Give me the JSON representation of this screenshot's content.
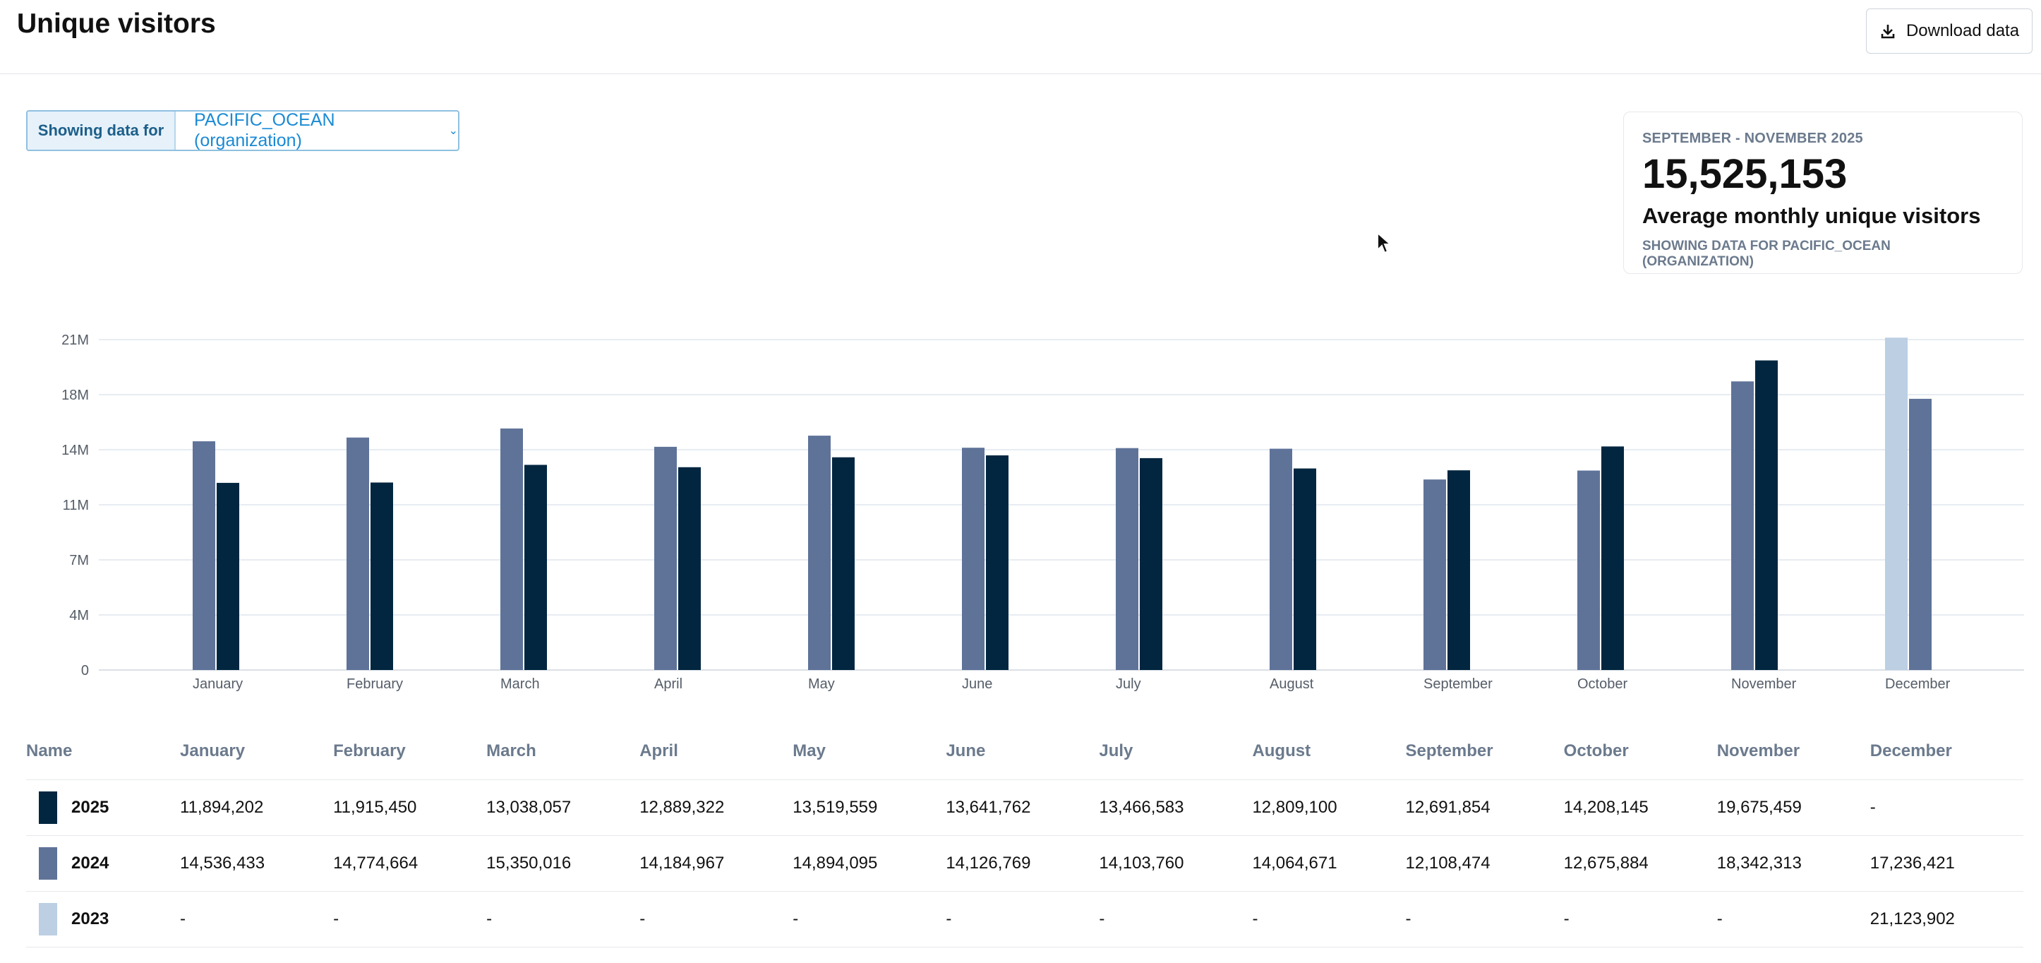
{
  "header": {
    "title": "Unique visitors",
    "download_label": "Download data"
  },
  "filter": {
    "label": "Showing data for",
    "value": "PACIFIC_OCEAN (organization)"
  },
  "summary": {
    "range": "SEPTEMBER - NOVEMBER 2025",
    "value": "15,525,153",
    "caption": "Average monthly unique visitors",
    "footnote": "SHOWING DATA FOR PACIFIC_OCEAN (ORGANIZATION)"
  },
  "colors": {
    "y2025": "#022640",
    "y2024": "#5f7399",
    "y2023": "#bccfe3"
  },
  "chart_data": {
    "type": "bar",
    "categories": [
      "January",
      "February",
      "March",
      "April",
      "May",
      "June",
      "July",
      "August",
      "September",
      "October",
      "November",
      "December"
    ],
    "yticks": [
      "0",
      "4M",
      "7M",
      "11M",
      "14M",
      "18M",
      "21M"
    ],
    "ylim": [
      0,
      21000000
    ],
    "grid": true,
    "series": [
      {
        "name": "2023",
        "values": [
          null,
          null,
          null,
          null,
          null,
          null,
          null,
          null,
          null,
          null,
          null,
          21123902
        ]
      },
      {
        "name": "2024",
        "values": [
          14536433,
          14774664,
          15350016,
          14184967,
          14894095,
          14126769,
          14103760,
          14064671,
          12108474,
          12675884,
          18342313,
          17236421
        ]
      },
      {
        "name": "2025",
        "values": [
          11894202,
          11915450,
          13038057,
          12889322,
          13519559,
          13641762,
          13466583,
          12809100,
          12691854,
          14208145,
          19675459,
          null
        ]
      }
    ]
  },
  "table": {
    "name_header": "Name",
    "rows": [
      {
        "name": "2025",
        "cells": [
          "11,894,202",
          "11,915,450",
          "13,038,057",
          "12,889,322",
          "13,519,559",
          "13,641,762",
          "13,466,583",
          "12,809,100",
          "12,691,854",
          "14,208,145",
          "19,675,459",
          "-"
        ]
      },
      {
        "name": "2024",
        "cells": [
          "14,536,433",
          "14,774,664",
          "15,350,016",
          "14,184,967",
          "14,894,095",
          "14,126,769",
          "14,103,760",
          "14,064,671",
          "12,108,474",
          "12,675,884",
          "18,342,313",
          "17,236,421"
        ]
      },
      {
        "name": "2023",
        "cells": [
          "-",
          "-",
          "-",
          "-",
          "-",
          "-",
          "-",
          "-",
          "-",
          "-",
          "-",
          "21,123,902"
        ]
      }
    ]
  }
}
